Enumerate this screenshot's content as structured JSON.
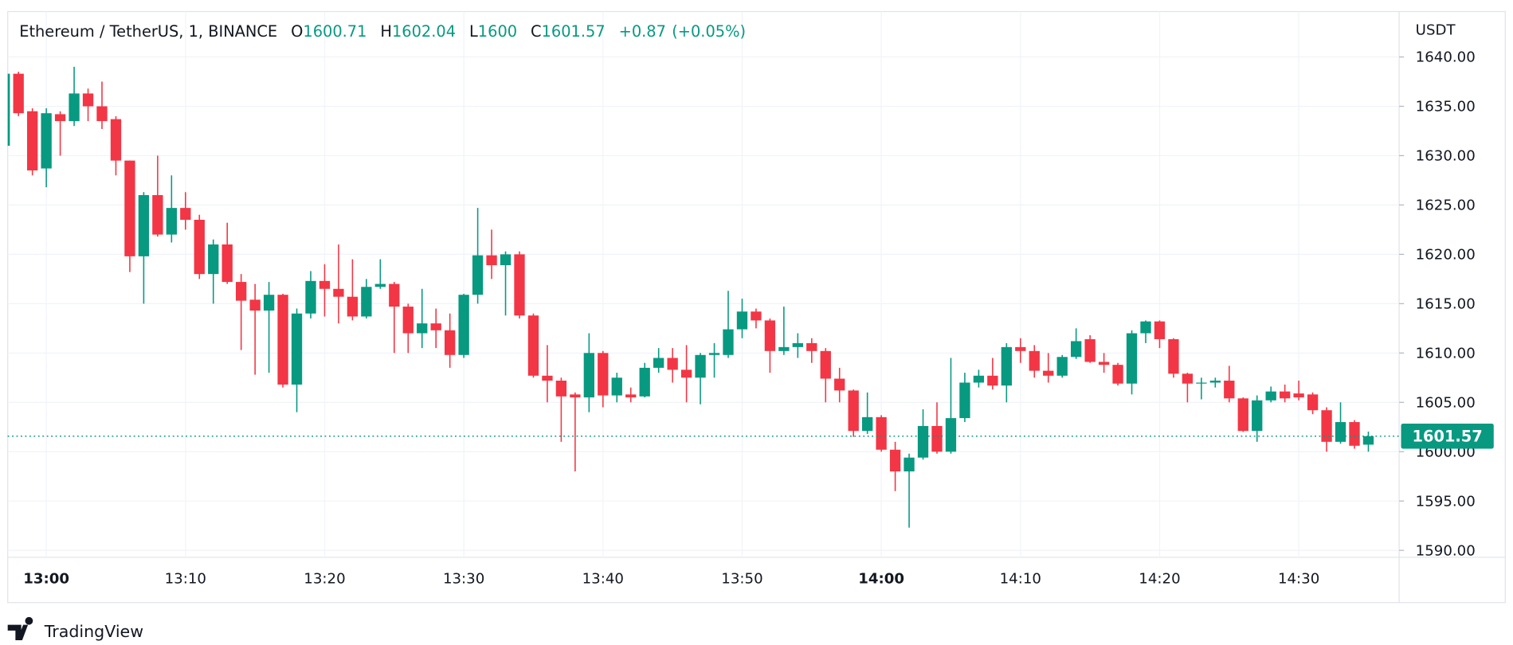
{
  "chart_data": {
    "type": "candlestick",
    "title": "Ethereum / TetherUS, 1, BINANCE",
    "ohlc_labels": [
      "O",
      "H",
      "L",
      "C"
    ],
    "change": "+0.87",
    "change_percent": "(+0.05%)",
    "y_unit": "USDT",
    "brand": "TradingView",
    "up_color": "#089981",
    "down_color": "#f23645",
    "grid": true,
    "categories": [
      null,
      null,
      null,
      "13:00",
      null,
      null,
      null,
      null,
      null,
      null,
      null,
      null,
      null,
      "13:10",
      null,
      null,
      null,
      null,
      null,
      null,
      null,
      null,
      null,
      "13:20",
      null,
      null,
      null,
      null,
      null,
      null,
      null,
      null,
      null,
      "13:30",
      null,
      null,
      null,
      null,
      null,
      null,
      null,
      null,
      null,
      "13:40",
      null,
      null,
      null,
      null,
      null,
      null,
      null,
      null,
      null,
      "13:50",
      null,
      null,
      null,
      null,
      null,
      null,
      null,
      null,
      null,
      "14:00",
      null,
      null,
      null,
      null,
      null,
      null,
      null,
      null,
      null,
      "14:10",
      null,
      null,
      null,
      null,
      null,
      null,
      null,
      null,
      null,
      "14:20",
      null,
      null,
      null,
      null,
      null,
      null,
      null,
      null,
      null,
      "14:30",
      null,
      null,
      null,
      null,
      null
    ],
    "open": [
      1631,
      1638.3,
      1634.5,
      1628.7,
      1634.2,
      1633.5,
      1636.3,
      1635,
      1633.7,
      1629.5,
      1619.8,
      1626,
      1622,
      1624.7,
      1623.5,
      1618,
      1621,
      1617.2,
      1615.4,
      1614.3,
      1615.9,
      1606.8,
      1614,
      1617.3,
      1616.5,
      1615.7,
      1613.7,
      1616.7,
      1617,
      1614.7,
      1612,
      1613,
      1612.3,
      1609.8,
      1615.9,
      1619.9,
      1618.9,
      1620,
      1613.8,
      1607.7,
      1607.2,
      1605.8,
      1605.5,
      1610,
      1605.7,
      1605.8,
      1605.6,
      1608.5,
      1609.5,
      1608.3,
      1607.5,
      1609.8,
      1609.8,
      1612.4,
      1614.2,
      1613.3,
      1610.2,
      1610.6,
      1611,
      1610.2,
      1607.4,
      1606.2,
      1602.1,
      1603.5,
      1600.2,
      1598,
      1599.4,
      1602.6,
      1600,
      1603.4,
      1607,
      1607.7,
      1606.7,
      1610.6,
      1610.2,
      1608.2,
      1607.7,
      1609.6,
      1611.4,
      1609.1,
      1608.8,
      1606.9,
      1612,
      1613.2,
      1611.4,
      1607.9,
      1606.9,
      1607,
      1607.2,
      1605.4,
      1602.1,
      1605.2,
      1606.1,
      1605.9,
      1605.8,
      1604.2,
      1601,
      1603,
      1600.71
    ],
    "high": [
      1638.5,
      1638.5,
      1634.8,
      1634.8,
      1634.5,
      1639,
      1636.8,
      1637.5,
      1634,
      1629.5,
      1626.3,
      1630,
      1628,
      1626.3,
      1624,
      1621.5,
      1623.2,
      1618,
      1617,
      1617.2,
      1616,
      1614.5,
      1618.3,
      1619,
      1621,
      1619.5,
      1617.5,
      1619.5,
      1617.2,
      1615,
      1616.5,
      1614.5,
      1614,
      1616,
      1624.7,
      1622.5,
      1620.3,
      1620.3,
      1614,
      1610.8,
      1607.5,
      1606,
      1612,
      1610.2,
      1608,
      1606.5,
      1609,
      1610.5,
      1610.5,
      1610.8,
      1610,
      1611,
      1616.3,
      1615.5,
      1614.5,
      1613.5,
      1614.7,
      1612,
      1611.5,
      1610.5,
      1608.5,
      1606.3,
      1606,
      1603.7,
      1601,
      1599.8,
      1604.3,
      1605,
      1609.5,
      1608,
      1608.3,
      1609.5,
      1611,
      1611.5,
      1610.8,
      1610,
      1609.8,
      1612.5,
      1611.8,
      1610,
      1609,
      1612.3,
      1613.3,
      1613.3,
      1611.5,
      1608,
      1607.5,
      1607.5,
      1608.7,
      1605.5,
      1605.7,
      1606.6,
      1606.8,
      1607.2,
      1606,
      1604.5,
      1605,
      1603.2,
      1602.04
    ],
    "low": [
      1631,
      1634,
      1628,
      1626.8,
      1630,
      1633,
      1633.5,
      1632.7,
      1628,
      1618.2,
      1615,
      1621.8,
      1621.2,
      1622.5,
      1617.5,
      1615,
      1617,
      1610.3,
      1607.8,
      1608,
      1606.5,
      1604,
      1613.5,
      1613.7,
      1613,
      1613.3,
      1613.5,
      1616.5,
      1610,
      1610,
      1610.5,
      1610.5,
      1608.5,
      1609.5,
      1615,
      1617.5,
      1613.8,
      1613.5,
      1607.5,
      1605,
      1601,
      1598,
      1604,
      1604.5,
      1605,
      1605,
      1605.5,
      1608,
      1607,
      1605,
      1604.8,
      1607.5,
      1609.5,
      1611.5,
      1612.5,
      1608,
      1609.8,
      1609.5,
      1609,
      1605,
      1605,
      1601.5,
      1601.8,
      1600,
      1596,
      1592.3,
      1599.2,
      1599.8,
      1599.8,
      1603,
      1606.5,
      1606.3,
      1605,
      1609,
      1607.5,
      1607,
      1607.5,
      1609.4,
      1609,
      1608,
      1606.7,
      1605.8,
      1611,
      1610.5,
      1607.5,
      1605,
      1605.3,
      1606.5,
      1605,
      1602,
      1601,
      1605,
      1605,
      1605.2,
      1603.8,
      1600,
      1600.8,
      1600.3,
      1600
    ],
    "close": [
      1638.3,
      1634.3,
      1628.5,
      1634.3,
      1633.5,
      1636.3,
      1635,
      1633.5,
      1629.5,
      1619.8,
      1626,
      1622,
      1624.7,
      1623.5,
      1618,
      1621,
      1617.2,
      1615.3,
      1614.3,
      1615.9,
      1606.8,
      1614,
      1617.3,
      1616.5,
      1615.7,
      1613.7,
      1616.7,
      1617,
      1614.7,
      1612,
      1613,
      1612.3,
      1609.8,
      1615.9,
      1619.9,
      1618.9,
      1620,
      1613.8,
      1607.7,
      1607.2,
      1605.6,
      1605.5,
      1610,
      1605.7,
      1607.5,
      1605.5,
      1608.5,
      1609.5,
      1608.3,
      1607.5,
      1609.8,
      1610,
      1612.4,
      1614.2,
      1613.3,
      1610.2,
      1610.6,
      1611,
      1610.2,
      1607.4,
      1606.2,
      1602.1,
      1603.5,
      1600.2,
      1598,
      1599.4,
      1602.6,
      1600,
      1603.4,
      1607,
      1607.7,
      1606.7,
      1610.6,
      1610.2,
      1608.2,
      1607.7,
      1609.6,
      1611.2,
      1609.1,
      1608.8,
      1606.9,
      1612,
      1613.2,
      1611.4,
      1607.9,
      1606.9,
      1607,
      1607.2,
      1605.4,
      1602.1,
      1605.2,
      1606.1,
      1605.4,
      1605.5,
      1604.2,
      1601,
      1603,
      1600.6,
      1601.57
    ],
    "ylim": [
      1589.3,
      1644.6
    ],
    "yticks": [
      {
        "value": 1590,
        "label": "1590.00"
      },
      {
        "value": 1595,
        "label": "1595.00"
      },
      {
        "value": 1600,
        "label": "1600.00"
      },
      {
        "value": 1605,
        "label": "1605.00"
      },
      {
        "value": 1610,
        "label": "1610.00"
      },
      {
        "value": 1615,
        "label": "1615.00"
      },
      {
        "value": 1620,
        "label": "1620.00"
      },
      {
        "value": 1625,
        "label": "1625.00"
      },
      {
        "value": 1630,
        "label": "1630.00"
      },
      {
        "value": 1635,
        "label": "1635.00"
      },
      {
        "value": 1640,
        "label": "1640.00"
      }
    ]
  }
}
